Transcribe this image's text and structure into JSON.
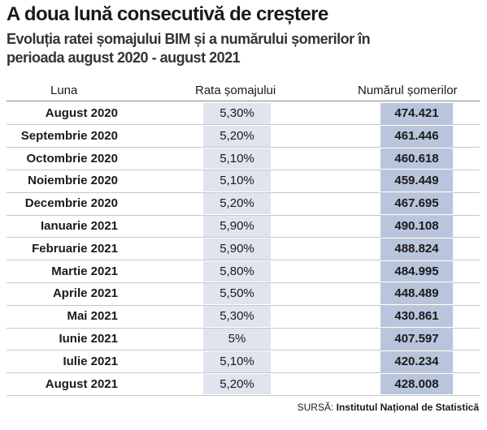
{
  "header": {
    "title": "A doua lună consecutivă de creștere",
    "subtitle_lines": [
      "Evoluția ratei șomajului BIM și a numărului șomerilor în",
      "perioada august 2020 - august 2021"
    ]
  },
  "table": {
    "columns": [
      "Luna",
      "Rata șomajului",
      "Numărul șomerilor"
    ],
    "rows": [
      [
        "August 2020",
        "5,30%",
        "474.421"
      ],
      [
        "Septembrie 2020",
        "5,20%",
        "461.446"
      ],
      [
        "Octombrie 2020",
        "5,10%",
        "460.618"
      ],
      [
        "Noiembrie 2020",
        "5,10%",
        "459.449"
      ],
      [
        "Decembrie 2020",
        "5,20%",
        "467.695"
      ],
      [
        "Ianuarie 2021",
        "5,90%",
        "490.108"
      ],
      [
        "Februarie 2021",
        "5,90%",
        "488.824"
      ],
      [
        "Martie 2021",
        "5,80%",
        "484.995"
      ],
      [
        "Aprile 2021",
        "5,50%",
        "448.489"
      ],
      [
        "Mai 2021",
        "5,30%",
        "430.861"
      ],
      [
        "Iunie 2021",
        "5%",
        "407.597"
      ],
      [
        "Iulie 2021",
        "5,10%",
        "420.234"
      ],
      [
        "August 2021",
        "5,20%",
        "428.008"
      ]
    ]
  },
  "source": {
    "label": "SURSĂ:",
    "text": "Institutul Național de Statistică"
  }
}
